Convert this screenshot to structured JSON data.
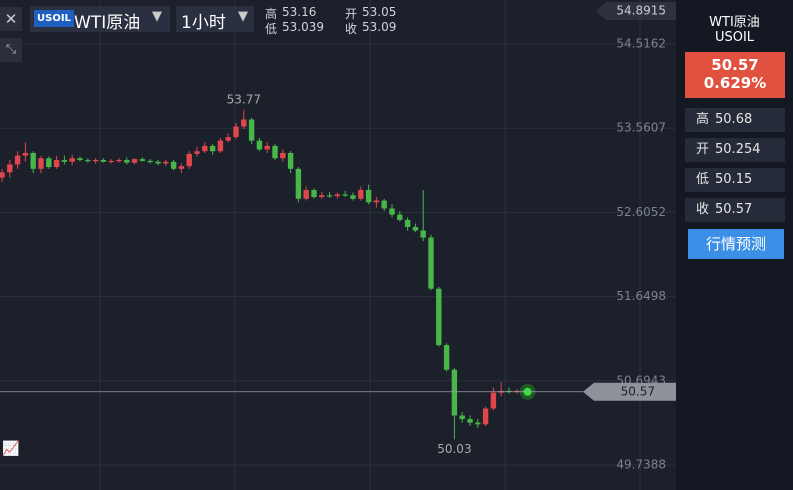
{
  "header": {
    "badge": "USOIL",
    "symbol": "WTI原油",
    "interval": "1小时",
    "ohlc": [
      {
        "label": "高",
        "value": "53.16"
      },
      {
        "label": "开",
        "value": "53.05"
      },
      {
        "label": "低",
        "value": "53.039"
      },
      {
        "label": "收",
        "value": "53.09"
      }
    ]
  },
  "sidebar": {
    "name": "WTI原油",
    "code": "USOIL",
    "price": "50.57",
    "change": "0.629%",
    "stats": [
      {
        "label": "高",
        "value": "50.68"
      },
      {
        "label": "开",
        "value": "50.254"
      },
      {
        "label": "低",
        "value": "50.15"
      },
      {
        "label": "收",
        "value": "50.57"
      }
    ],
    "button": "行情预测"
  },
  "chart_data": {
    "type": "candlestick",
    "up_color": "#e0474c",
    "down_color": "#49b649",
    "ylim": [
      49.455,
      55.016
    ],
    "yticks": [
      49.7388,
      50.6943,
      51.6498,
      52.6052,
      53.5607,
      54.5162
    ],
    "top_marker": 54.8915,
    "last_price": 50.57,
    "max_label": 53.77,
    "min_label": 50.03,
    "open": [
      53.0,
      53.06,
      53.15,
      53.25,
      53.28,
      53.1,
      53.22,
      53.12,
      53.2,
      53.18,
      53.22,
      53.2,
      53.19,
      53.2,
      53.18,
      53.19,
      53.2,
      53.17,
      53.21,
      53.19,
      53.18,
      53.16,
      53.18,
      53.1,
      53.13,
      53.27,
      53.3,
      53.36,
      53.3,
      53.42,
      53.46,
      53.58,
      53.66,
      53.42,
      53.32,
      53.36,
      53.22,
      53.28,
      53.1,
      52.76,
      52.86,
      52.78,
      52.8,
      52.79,
      52.81,
      52.8,
      52.76,
      52.86,
      52.72,
      52.74,
      52.65,
      52.58,
      52.52,
      52.44,
      52.4,
      52.32,
      51.74,
      51.1,
      50.82,
      50.3,
      50.26,
      50.22,
      50.2,
      50.38,
      50.56,
      50.58,
      50.57,
      50.58
    ],
    "high": [
      53.1,
      53.2,
      53.3,
      53.4,
      53.3,
      53.25,
      53.24,
      53.25,
      53.25,
      53.26,
      53.24,
      53.22,
      53.22,
      53.22,
      53.21,
      53.22,
      53.23,
      53.22,
      53.23,
      53.21,
      53.2,
      53.2,
      53.2,
      53.16,
      53.3,
      53.35,
      53.4,
      53.38,
      53.45,
      53.5,
      53.62,
      53.77,
      53.68,
      53.45,
      53.4,
      53.38,
      53.32,
      53.3,
      53.12,
      52.9,
      52.88,
      52.84,
      52.84,
      52.83,
      52.85,
      52.83,
      52.9,
      52.92,
      52.78,
      52.76,
      52.7,
      52.62,
      52.55,
      52.48,
      52.86,
      52.35,
      51.76,
      51.12,
      50.84,
      50.34,
      50.3,
      50.26,
      50.4,
      50.62,
      50.68,
      50.62,
      50.6,
      50.6
    ],
    "low": [
      52.95,
      53.0,
      53.1,
      53.18,
      53.05,
      53.05,
      53.1,
      53.1,
      53.15,
      53.14,
      53.18,
      53.17,
      53.16,
      53.17,
      53.16,
      53.17,
      53.15,
      53.15,
      53.18,
      53.16,
      53.14,
      53.13,
      53.08,
      53.05,
      53.1,
      53.24,
      53.28,
      53.26,
      53.28,
      53.4,
      53.44,
      53.55,
      53.38,
      53.3,
      53.28,
      53.2,
      53.18,
      53.05,
      52.72,
      52.74,
      52.76,
      52.76,
      52.77,
      52.76,
      52.78,
      52.74,
      52.74,
      52.7,
      52.66,
      52.62,
      52.55,
      52.5,
      52.4,
      52.38,
      52.28,
      51.72,
      51.08,
      50.8,
      50.03,
      50.22,
      50.18,
      50.16,
      50.18,
      50.36,
      50.52,
      50.55,
      50.55,
      50.56
    ],
    "close": [
      53.06,
      53.15,
      53.25,
      53.28,
      53.1,
      53.22,
      53.12,
      53.2,
      53.18,
      53.22,
      53.2,
      53.19,
      53.2,
      53.18,
      53.19,
      53.2,
      53.17,
      53.21,
      53.19,
      53.18,
      53.16,
      53.18,
      53.1,
      53.13,
      53.27,
      53.3,
      53.36,
      53.3,
      53.42,
      53.46,
      53.58,
      53.66,
      53.42,
      53.32,
      53.36,
      53.22,
      53.28,
      53.1,
      52.76,
      52.86,
      52.78,
      52.8,
      52.79,
      52.81,
      52.8,
      52.76,
      52.86,
      52.72,
      52.74,
      52.65,
      52.58,
      52.52,
      52.44,
      52.4,
      52.32,
      51.74,
      51.1,
      50.82,
      50.3,
      50.26,
      50.22,
      50.2,
      50.38,
      50.56,
      50.58,
      50.57,
      50.58,
      50.57
    ]
  }
}
